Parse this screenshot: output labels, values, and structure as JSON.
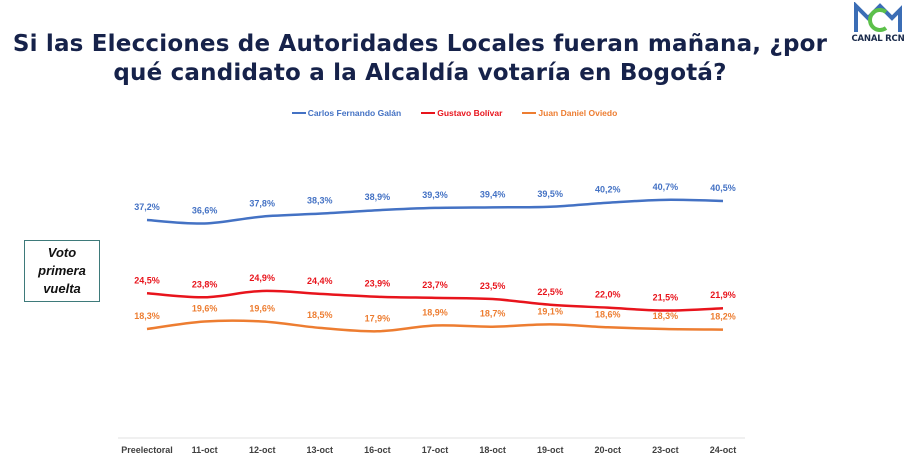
{
  "header": {
    "title_line1": "Si las Elecciones de Autoridades Locales fueran mañana, ¿por",
    "title_line2": "qué candidato a la Alcaldía votaría en Bogotá?",
    "logo_text": "CANAL RCN"
  },
  "side_label": {
    "line1": "Voto",
    "line2": "primera",
    "line3": "vuelta"
  },
  "chart_data": {
    "type": "line",
    "title": "Si las Elecciones de Autoridades Locales fueran mañana, ¿por qué candidato a la Alcaldía votaría en Bogotá?",
    "xlabel": "",
    "ylabel": "",
    "categories": [
      "Preelectoral",
      "11-oct",
      "12-oct",
      "13-oct",
      "16-oct",
      "17-oct",
      "18-oct",
      "19-oct",
      "20-oct",
      "23-oct",
      "24-oct"
    ],
    "ylim": [
      0,
      45
    ],
    "grid": false,
    "legend_position": "top",
    "series": [
      {
        "name": "Carlos Fernando Galán",
        "color": "#4472c4",
        "values": [
          37.2,
          36.6,
          37.8,
          38.3,
          38.9,
          39.3,
          39.4,
          39.5,
          40.2,
          40.7,
          40.5
        ],
        "labels": [
          "37,2%",
          "36,6%",
          "37,8%",
          "38,3%",
          "38,9%",
          "39,3%",
          "39,4%",
          "39,5%",
          "40,2%",
          "40,7%",
          "40,5%"
        ]
      },
      {
        "name": "Gustavo Bolívar",
        "color": "#e8141c",
        "values": [
          24.5,
          23.8,
          24.9,
          24.4,
          23.9,
          23.7,
          23.5,
          22.5,
          22.0,
          21.5,
          21.9
        ],
        "labels": [
          "24,5%",
          "23,8%",
          "24,9%",
          "24,4%",
          "23,9%",
          "23,7%",
          "23,5%",
          "22,5%",
          "22,0%",
          "21,5%",
          "21,9%"
        ]
      },
      {
        "name": "Juan Daniel Oviedo",
        "color": "#ed7d31",
        "values": [
          18.3,
          19.6,
          19.6,
          18.5,
          17.9,
          18.9,
          18.7,
          19.1,
          18.6,
          18.3,
          18.2
        ],
        "labels": [
          "18,3%",
          "19,6%",
          "19,6%",
          "18,5%",
          "17,9%",
          "18,9%",
          "18,7%",
          "19,1%",
          "18,6%",
          "18,3%",
          "18,2%"
        ]
      }
    ]
  }
}
